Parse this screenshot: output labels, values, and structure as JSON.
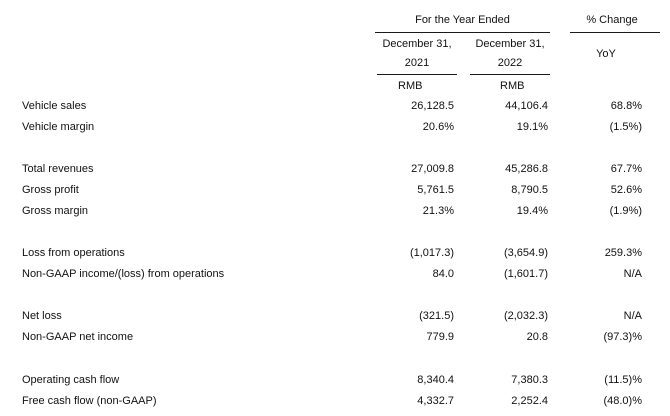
{
  "header": {
    "period_title": "For the Year Ended",
    "change_title": "% Change",
    "col1_line1": "December 31,",
    "col1_line2": "2021",
    "col2_line1": "December 31,",
    "col2_line2": "2022",
    "change_sub": "YoY",
    "currency1": "RMB",
    "currency2": "RMB"
  },
  "rows": [
    {
      "label": "Vehicle sales",
      "y2021": "26,128.5",
      "y2022": "44,106.4",
      "yoy": "68.8%"
    },
    {
      "label": "Vehicle margin",
      "y2021": "20.6%",
      "y2022": "19.1%",
      "yoy": "(1.5%)"
    },
    {
      "label": "Total revenues",
      "y2021": "27,009.8",
      "y2022": "45,286.8",
      "yoy": "67.7%"
    },
    {
      "label": "Gross profit",
      "y2021": "5,761.5",
      "y2022": "8,790.5",
      "yoy": "52.6%"
    },
    {
      "label": "Gross margin",
      "y2021": "21.3%",
      "y2022": "19.4%",
      "yoy": "(1.9%)"
    },
    {
      "label": "Loss from operations",
      "y2021": "(1,017.3)",
      "y2022": "(3,654.9)",
      "yoy": "259.3%"
    },
    {
      "label": "Non-GAAP income/(loss) from operations",
      "y2021": "84.0",
      "y2022": "(1,601.7)",
      "yoy": "N/A"
    },
    {
      "label": "Net loss",
      "y2021": "(321.5)",
      "y2022": "(2,032.3)",
      "yoy": "N/A"
    },
    {
      "label": "Non-GAAP net income",
      "y2021": "779.9",
      "y2022": "20.8",
      "yoy": "(97.3)%"
    },
    {
      "label": "Operating cash flow",
      "y2021": "8,340.4",
      "y2022": "7,380.3",
      "yoy": "(11.5)%"
    },
    {
      "label": "Free cash flow (non-GAAP)",
      "y2021": "4,332.7",
      "y2022": "2,252.4",
      "yoy": "(48.0)%"
    }
  ]
}
